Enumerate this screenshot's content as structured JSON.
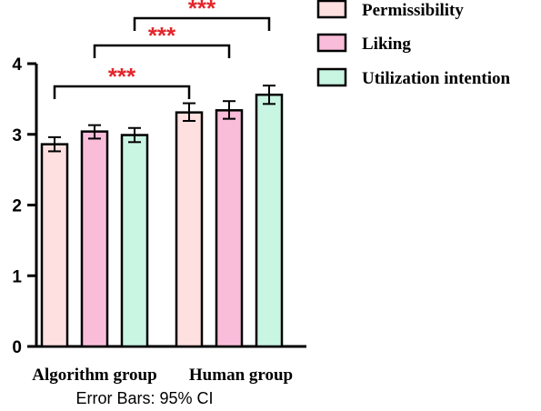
{
  "chart_data": {
    "type": "bar",
    "categories": [
      "Algorithm group",
      "Human group"
    ],
    "series": [
      {
        "name": "Permissibility",
        "values": [
          2.86,
          3.31
        ],
        "ci_low": [
          2.76,
          3.19
        ],
        "ci_high": [
          2.96,
          3.44
        ],
        "color": "#fde0df"
      },
      {
        "name": "Liking",
        "values": [
          3.04,
          3.34
        ],
        "ci_low": [
          2.94,
          3.22
        ],
        "ci_high": [
          3.13,
          3.47
        ],
        "color": "#f9bdda"
      },
      {
        "name": "Utilization intention",
        "values": [
          2.99,
          3.56
        ],
        "ci_low": [
          2.89,
          3.43
        ],
        "ci_high": [
          3.09,
          3.69
        ],
        "color": "#c9f5e3"
      }
    ],
    "ylim": [
      0,
      4
    ],
    "yticks": [
      "0",
      "1",
      "2",
      "3",
      "4"
    ],
    "xlabel": "",
    "ylabel": "",
    "note": "Error Bars: 95% CI",
    "legend_position": "top-right",
    "significance": [
      {
        "label": "***",
        "series": 0
      },
      {
        "label": "***",
        "series": 1
      },
      {
        "label": "***",
        "series": 2
      }
    ]
  }
}
